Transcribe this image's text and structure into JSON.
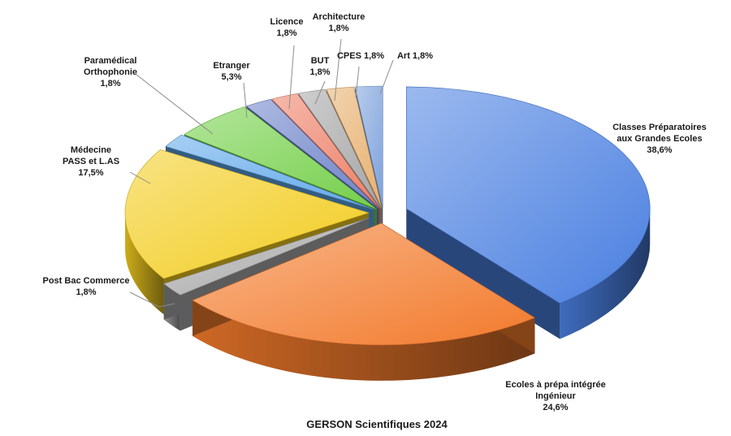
{
  "chart_data": {
    "type": "pie",
    "title": "GERSON Scientifiques 2024",
    "slices": [
      {
        "name": "Classes Préparatoires aux Grandes Ecoles",
        "value": 38.6,
        "label": [
          "Classes Préparatoires",
          "aux Grandes Ecoles",
          "38,6%"
        ],
        "color": "#4a7fe0"
      },
      {
        "name": "Ecoles à prépa intégrée Ingénieur",
        "value": 24.6,
        "label": [
          "Ecoles à prépa intégrée",
          "Ingénieur",
          "24,6%"
        ],
        "color": "#f27a2c"
      },
      {
        "name": "Post Bac Commerce",
        "value": 1.8,
        "label": [
          "Post Bac Commerce",
          "1,8%"
        ],
        "color": "#a8a8a8"
      },
      {
        "name": "Médecine PASS et L.AS",
        "value": 17.5,
        "label": [
          "Médecine",
          "PASS et L.AS",
          "17,5%"
        ],
        "color": "#f2cc1f"
      },
      {
        "name": "Paramédical Orthophonie",
        "value": 1.8,
        "label": [
          "Paramédical",
          "Orthophonie",
          "1,8%"
        ],
        "color": "#5fa8ea"
      },
      {
        "name": "Etranger",
        "value": 5.3,
        "label": [
          "Etranger",
          "5,3%"
        ],
        "color": "#74cf4a"
      },
      {
        "name": "Licence",
        "value": 1.8,
        "label": [
          "Licence",
          "1,8%"
        ],
        "color": "#6c82c8"
      },
      {
        "name": "BUT",
        "value": 1.8,
        "label": [
          "BUT",
          "1,8%"
        ],
        "color": "#ec7f67"
      },
      {
        "name": "Architecture",
        "value": 1.8,
        "label": [
          "Architecture",
          "1,8%"
        ],
        "color": "#a6a6a6"
      },
      {
        "name": "CPES",
        "value": 1.8,
        "label": [
          "CPES 1,8%"
        ],
        "color": "#e8b070"
      },
      {
        "name": "Art",
        "value": 1.8,
        "label": [
          "Art 1,8%"
        ],
        "color": "#7ea2dc"
      }
    ],
    "legend": "none"
  }
}
